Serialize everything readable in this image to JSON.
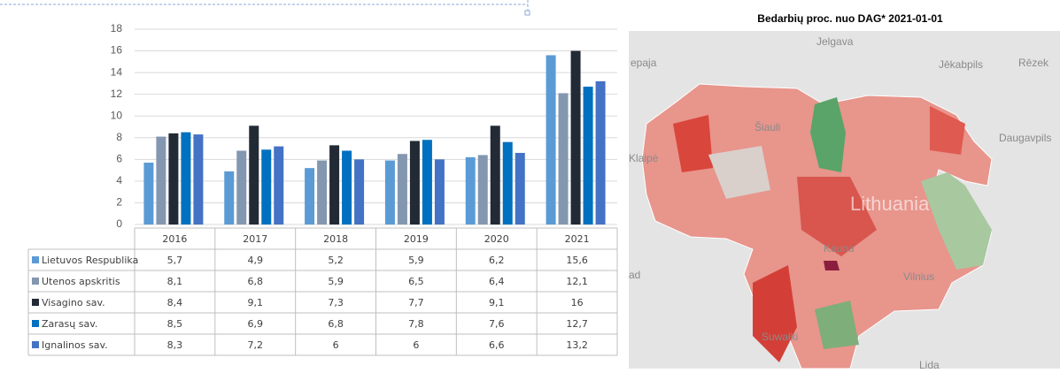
{
  "chart_data": {
    "type": "bar",
    "categories": [
      "2016",
      "2017",
      "2018",
      "2019",
      "2020",
      "2021"
    ],
    "series": [
      {
        "name": "Lietuvos Respublika",
        "color": "#5b9bd5",
        "values": [
          5.7,
          4.9,
          5.2,
          5.9,
          6.2,
          15.6
        ],
        "value_labels": [
          "5,7",
          "4,9",
          "5,2",
          "5,9",
          "6,2",
          "15,6"
        ]
      },
      {
        "name": "Utenos apskritis",
        "color": "#8497b0",
        "values": [
          8.1,
          6.8,
          5.9,
          6.5,
          6.4,
          12.1
        ],
        "value_labels": [
          "8,1",
          "6,8",
          "5,9",
          "6,5",
          "6,4",
          "12,1"
        ]
      },
      {
        "name": "Visagino sav.",
        "color": "#222a35",
        "values": [
          8.4,
          9.1,
          7.3,
          7.7,
          9.1,
          16
        ],
        "value_labels": [
          "8,4",
          "9,1",
          "7,3",
          "7,7",
          "9,1",
          "16"
        ]
      },
      {
        "name": "Zarasų sav.",
        "color": "#0070c0",
        "values": [
          8.5,
          6.9,
          6.8,
          7.8,
          7.6,
          12.7
        ],
        "value_labels": [
          "8,5",
          "6,9",
          "6,8",
          "7,8",
          "7,6",
          "12,7"
        ]
      },
      {
        "name": "Ignalinos sav.",
        "color": "#4472c4",
        "values": [
          8.3,
          7.2,
          6,
          6,
          6.6,
          13.2
        ],
        "value_labels": [
          "8,3",
          "7,2",
          "6",
          "6",
          "6,6",
          "13,2"
        ]
      }
    ],
    "ylim": [
      0,
      18
    ],
    "yticks": [
      0,
      2,
      4,
      6,
      8,
      10,
      12,
      14,
      16,
      18
    ],
    "grid": true
  },
  "map": {
    "title": "Bedarbių proc. nuo DAG* 2021-01-01",
    "labels": [
      "Jelgava",
      "epaja",
      "Jēkabpils",
      "Rēzek",
      "Daugavpils",
      "Šiauli",
      "Klaipė",
      "Lithuania",
      "Kauna",
      "Vilnius",
      "ad",
      "Suwałki",
      "Lida"
    ]
  }
}
